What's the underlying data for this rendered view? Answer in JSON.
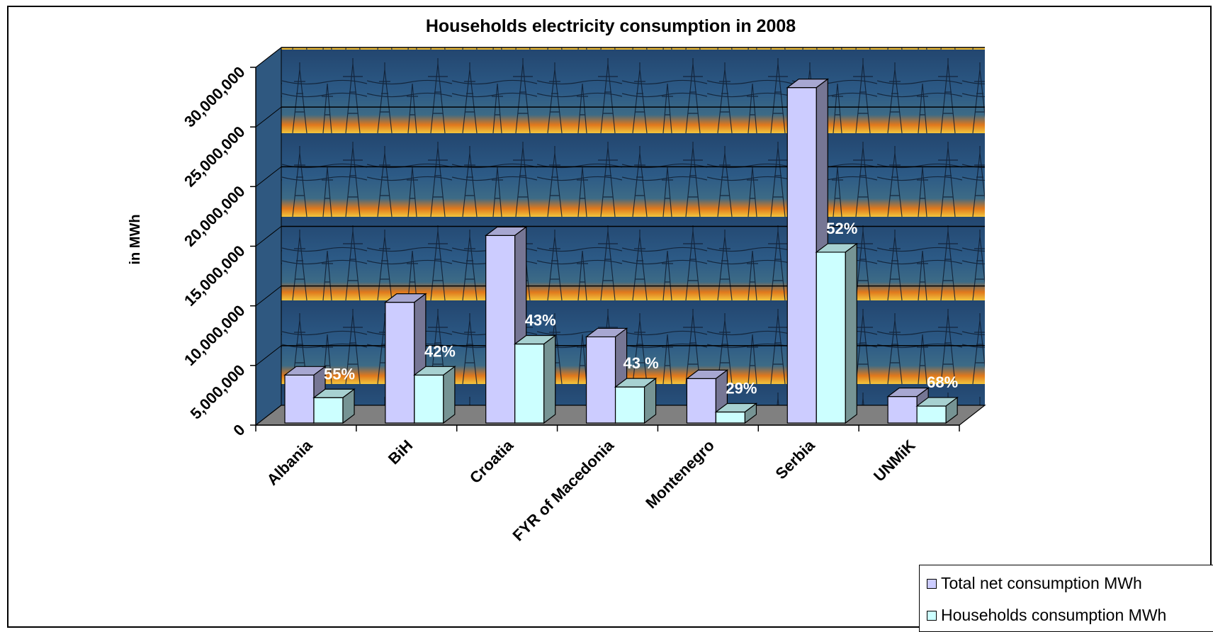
{
  "chart_data": {
    "type": "bar",
    "title": "Households electricity consumption in 2008",
    "xlabel": "",
    "ylabel": "in MWh",
    "ylim": [
      0,
      30000000
    ],
    "yticks": [
      "0",
      "5,000,000",
      "10,000,000",
      "15,000,000",
      "20,000,000",
      "25,000,000",
      "30,000,000"
    ],
    "categories": [
      "Albania",
      "BiH",
      "Croatia",
      "FYR of Macedonia",
      "Montenegro",
      "Serbia",
      "UNMiK"
    ],
    "series": [
      {
        "name": "Total net consumption  MWh",
        "color": "#ccccff",
        "values": [
          4200000,
          10300000,
          15900000,
          7400000,
          3900000,
          28300000,
          2400000
        ]
      },
      {
        "name": "Households consumption MWh",
        "color": "#ccffff",
        "values": [
          2300000,
          4200000,
          6800000,
          3200000,
          1100000,
          14500000,
          1600000
        ]
      }
    ],
    "data_labels": [
      "55%",
      "42%",
      "43%",
      "43 %",
      "29%",
      "52%",
      "68%"
    ],
    "grid": true,
    "legend_position": "bottom-right"
  }
}
